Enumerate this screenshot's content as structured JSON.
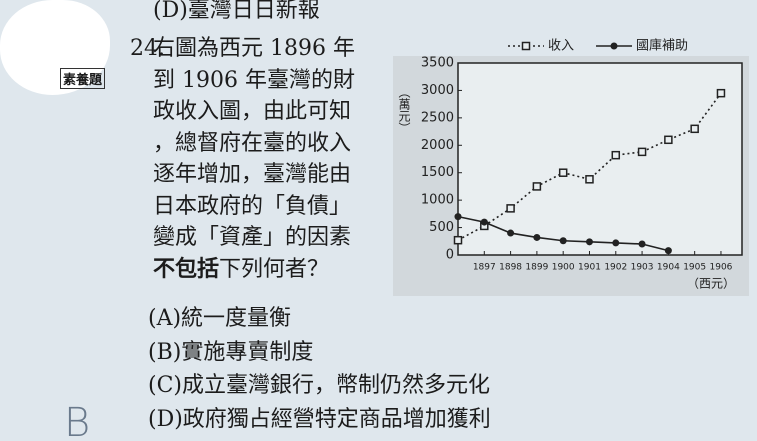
{
  "prev_option": "(D)臺灣日日新報",
  "question": {
    "number": "24.",
    "tag": "素養題",
    "lines": [
      "右圖為西元 1896 年",
      "到 1906 年臺灣的財",
      "政收入圖，由此可知",
      "，總督府在臺的收入",
      "逐年增加，臺灣能由",
      "日本政府的「負債」",
      "變成「資產」的因素"
    ],
    "last_line_bold": "不包括",
    "last_line_rest": "下列何者？",
    "options": [
      "(A)統一度量衡",
      "(B)實施專賣制度",
      "(C)成立臺灣銀行，幣制仍然多元化",
      "(D)政府獨占經營特定商品增加獲利"
    ],
    "handwritten_answer": "B"
  },
  "chart_data": {
    "type": "line",
    "y_label": "（萬元）",
    "x_label": "（西元）",
    "x": [
      1896,
      1897,
      1898,
      1899,
      1900,
      1901,
      1902,
      1903,
      1904,
      1905,
      1906
    ],
    "xlim": [
      1896,
      1906.8
    ],
    "xticks": [
      1897,
      1898,
      1899,
      1900,
      1901,
      1902,
      1903,
      1904,
      1905,
      1906
    ],
    "ylim": [
      0,
      3500
    ],
    "yticks": [
      0,
      500,
      1000,
      1500,
      2000,
      2500,
      3000,
      3500
    ],
    "grid": false,
    "series": [
      {
        "name": "收入",
        "color": "#222222",
        "line_style": "dotted",
        "marker": "square",
        "values": [
          270,
          530,
          850,
          1250,
          1500,
          1380,
          1820,
          1880,
          2100,
          2300,
          2950
        ]
      },
      {
        "name": "國庫補助",
        "color": "#222222",
        "line_style": "solid",
        "marker": "circle",
        "values": [
          700,
          600,
          400,
          320,
          260,
          240,
          220,
          200,
          80,
          null,
          null
        ]
      }
    ]
  }
}
